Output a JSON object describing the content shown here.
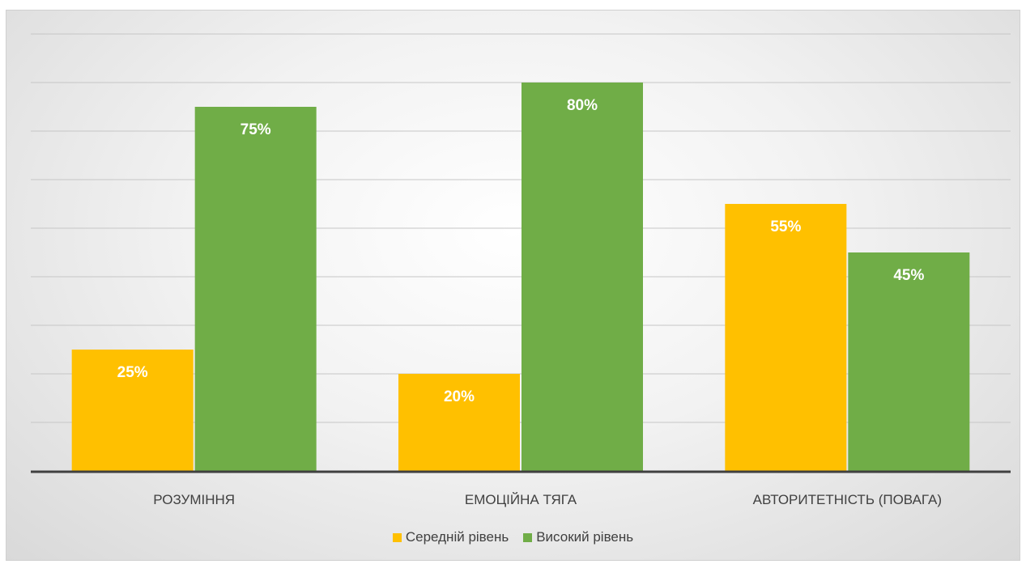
{
  "chart_data": {
    "type": "bar",
    "categories": [
      "РОЗУМІННЯ",
      "ЕМОЦІЙНА ТЯГА",
      "АВТОРИТЕТНІСТЬ (ПОВАГА)"
    ],
    "series": [
      {
        "name": "Середній рівень",
        "values": [
          25,
          20,
          55
        ],
        "labels": [
          "25%",
          "20%",
          "55%"
        ],
        "color": "#FFC000"
      },
      {
        "name": "Високий рівень",
        "values": [
          75,
          80,
          45
        ],
        "labels": [
          "75%",
          "80%",
          "45%"
        ],
        "color": "#70AD47"
      }
    ],
    "ylim": [
      0,
      90
    ],
    "gridline_step": 10,
    "grid": true,
    "axis_tick_labels_shown": false,
    "legend_position": "bottom",
    "title": "",
    "xlabel": "",
    "ylabel": ""
  }
}
